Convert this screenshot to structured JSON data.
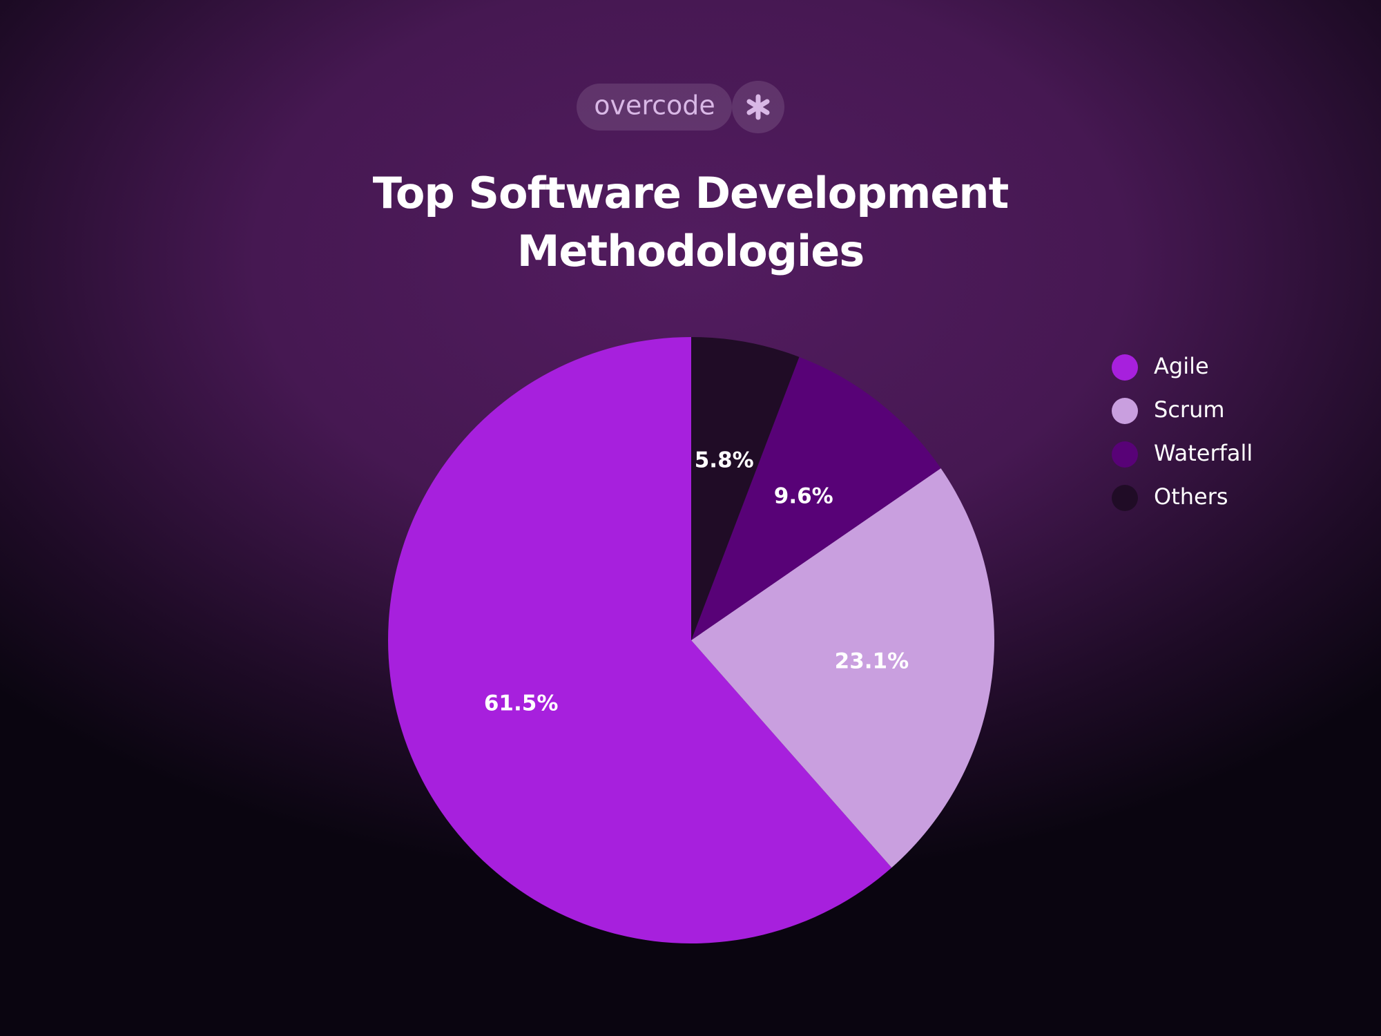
{
  "brand": "overcode",
  "chart_data": {
    "type": "pie",
    "title": "Top Software Development Methodologies",
    "categories": [
      "Agile",
      "Scrum",
      "Waterfall",
      "Others"
    ],
    "values": [
      61.5,
      23.1,
      9.6,
      5.8
    ],
    "value_labels": [
      "61.5%",
      "23.1%",
      "9.6%",
      "5.8%"
    ],
    "colors": [
      "#a720dd",
      "#c99fdf",
      "#580277",
      "#200c26"
    ],
    "direction": "counterclockwise",
    "legend": "right"
  }
}
